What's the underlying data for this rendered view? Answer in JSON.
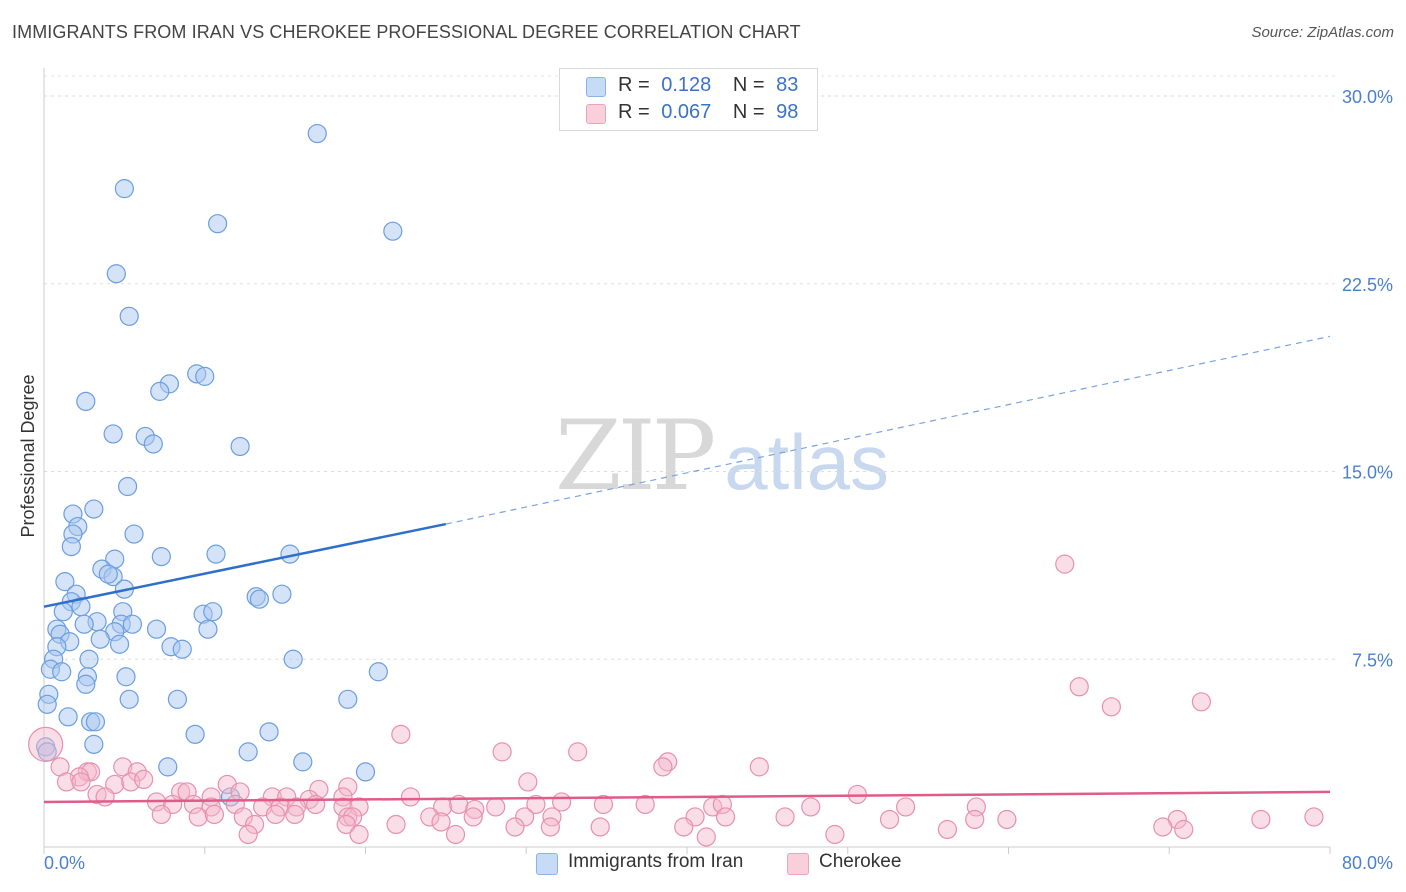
{
  "title": "IMMIGRANTS FROM IRAN VS CHEROKEE PROFESSIONAL DEGREE CORRELATION CHART",
  "source": "Source: ZipAtlas.com",
  "watermark": {
    "zip": "ZIP",
    "atlas": "atlas"
  },
  "legend": {
    "series1": {
      "r_label": "R =",
      "r_value": "0.128",
      "n_label": "N =",
      "n_value": "83",
      "color": "#a9c8f0"
    },
    "series2": {
      "r_label": "R =",
      "r_value": "0.067",
      "n_label": "N =",
      "n_value": "98",
      "color": "#f5b5c9"
    }
  },
  "bottom_legend": {
    "series1": "Immigrants from Iran",
    "series2": "Cherokee"
  },
  "chart_data": {
    "type": "scatter",
    "title": "IMMIGRANTS FROM IRAN VS CHEROKEE PROFESSIONAL DEGREE CORRELATION CHART",
    "xlabel": "",
    "ylabel": "Professional Degree",
    "xlim": [
      0,
      80
    ],
    "ylim": [
      0,
      31
    ],
    "x_tick_labels": [
      "0.0%",
      "80.0%"
    ],
    "y_ticks": [
      7.5,
      15.0,
      22.5,
      30.0
    ],
    "y_tick_labels": [
      "7.5%",
      "15.0%",
      "22.5%",
      "30.0%"
    ],
    "grid": true,
    "series": [
      {
        "name": "Immigrants from Iran",
        "color": "#a9c8f0",
        "stroke": "#6b9ee0",
        "trend": {
          "x0": 0,
          "y0": 9.6,
          "x1": 25,
          "y1": 12.9,
          "dash_to_x": 80,
          "dash_to_y": 20.4,
          "color": "#2f6fcc"
        },
        "points": [
          [
            17.0,
            28.5
          ],
          [
            5.0,
            26.3
          ],
          [
            10.8,
            24.9
          ],
          [
            21.7,
            24.6
          ],
          [
            4.5,
            22.9
          ],
          [
            5.3,
            21.2
          ],
          [
            9.5,
            18.9
          ],
          [
            10.0,
            18.8
          ],
          [
            7.8,
            18.5
          ],
          [
            7.2,
            18.2
          ],
          [
            2.6,
            17.8
          ],
          [
            4.3,
            16.5
          ],
          [
            6.3,
            16.4
          ],
          [
            6.8,
            16.1
          ],
          [
            12.2,
            16.0
          ],
          [
            5.2,
            14.4
          ],
          [
            3.1,
            13.5
          ],
          [
            1.8,
            13.3
          ],
          [
            2.1,
            12.8
          ],
          [
            5.6,
            12.5
          ],
          [
            1.8,
            12.5
          ],
          [
            1.7,
            12.0
          ],
          [
            7.3,
            11.6
          ],
          [
            10.7,
            11.7
          ],
          [
            15.3,
            11.7
          ],
          [
            4.4,
            11.5
          ],
          [
            3.6,
            11.1
          ],
          [
            4.3,
            10.8
          ],
          [
            1.3,
            10.6
          ],
          [
            5.0,
            10.3
          ],
          [
            2.0,
            10.1
          ],
          [
            13.2,
            10.0
          ],
          [
            14.8,
            10.1
          ],
          [
            13.4,
            9.9
          ],
          [
            1.7,
            9.8
          ],
          [
            2.3,
            9.6
          ],
          [
            1.2,
            9.4
          ],
          [
            4.9,
            9.4
          ],
          [
            9.9,
            9.3
          ],
          [
            3.3,
            9.0
          ],
          [
            2.5,
            8.9
          ],
          [
            4.8,
            8.9
          ],
          [
            5.5,
            8.9
          ],
          [
            0.8,
            8.7
          ],
          [
            4.4,
            8.6
          ],
          [
            1.0,
            8.5
          ],
          [
            7.0,
            8.7
          ],
          [
            10.2,
            8.7
          ],
          [
            3.5,
            8.3
          ],
          [
            4.7,
            8.1
          ],
          [
            1.6,
            8.2
          ],
          [
            0.8,
            8.0
          ],
          [
            7.9,
            8.0
          ],
          [
            8.6,
            7.9
          ],
          [
            0.6,
            7.5
          ],
          [
            2.8,
            7.5
          ],
          [
            15.5,
            7.5
          ],
          [
            0.4,
            7.1
          ],
          [
            1.1,
            7.0
          ],
          [
            2.7,
            6.8
          ],
          [
            5.1,
            6.8
          ],
          [
            20.8,
            7.0
          ],
          [
            2.6,
            6.5
          ],
          [
            0.3,
            6.1
          ],
          [
            5.3,
            5.9
          ],
          [
            8.3,
            5.9
          ],
          [
            18.9,
            5.9
          ],
          [
            0.2,
            5.7
          ],
          [
            1.5,
            5.2
          ],
          [
            2.9,
            5.0
          ],
          [
            3.2,
            5.0
          ],
          [
            14.0,
            4.6
          ],
          [
            9.4,
            4.5
          ],
          [
            3.1,
            4.1
          ],
          [
            12.7,
            3.8
          ],
          [
            0.1,
            4.0
          ],
          [
            16.1,
            3.4
          ],
          [
            7.7,
            3.2
          ],
          [
            20.0,
            3.0
          ],
          [
            11.6,
            2.0
          ],
          [
            0.2,
            3.8
          ],
          [
            10.5,
            9.4
          ],
          [
            4.0,
            10.9
          ]
        ]
      },
      {
        "name": "Cherokee",
        "color": "#f5b5c9",
        "stroke": "#e890ad",
        "trend": {
          "x0": 0,
          "y0": 1.8,
          "x1": 80,
          "y1": 2.2,
          "color": "#e05a8a"
        },
        "points": [
          [
            63.5,
            11.3
          ],
          [
            64.4,
            6.4
          ],
          [
            66.4,
            5.6
          ],
          [
            72.0,
            5.8
          ],
          [
            22.2,
            4.5
          ],
          [
            28.5,
            3.8
          ],
          [
            33.2,
            3.8
          ],
          [
            38.8,
            3.4
          ],
          [
            38.5,
            3.2
          ],
          [
            44.5,
            3.2
          ],
          [
            1.0,
            3.2
          ],
          [
            4.9,
            3.2
          ],
          [
            5.8,
            3.0
          ],
          [
            2.7,
            3.0
          ],
          [
            2.9,
            3.0
          ],
          [
            2.2,
            2.8
          ],
          [
            1.4,
            2.6
          ],
          [
            2.3,
            2.6
          ],
          [
            4.4,
            2.5
          ],
          [
            5.4,
            2.6
          ],
          [
            6.2,
            2.7
          ],
          [
            11.4,
            2.5
          ],
          [
            18.9,
            2.4
          ],
          [
            30.1,
            2.6
          ],
          [
            17.1,
            2.3
          ],
          [
            8.5,
            2.2
          ],
          [
            8.9,
            2.2
          ],
          [
            12.2,
            2.2
          ],
          [
            3.3,
            2.1
          ],
          [
            3.8,
            2.0
          ],
          [
            10.4,
            2.0
          ],
          [
            14.2,
            2.0
          ],
          [
            15.1,
            2.0
          ],
          [
            16.5,
            1.9
          ],
          [
            18.6,
            2.0
          ],
          [
            22.8,
            2.0
          ],
          [
            50.6,
            2.1
          ],
          [
            7.0,
            1.8
          ],
          [
            8.0,
            1.7
          ],
          [
            9.3,
            1.7
          ],
          [
            10.4,
            1.6
          ],
          [
            11.9,
            1.7
          ],
          [
            13.6,
            1.6
          ],
          [
            14.7,
            1.6
          ],
          [
            15.7,
            1.6
          ],
          [
            16.9,
            1.7
          ],
          [
            18.6,
            1.6
          ],
          [
            19.6,
            1.6
          ],
          [
            24.8,
            1.6
          ],
          [
            25.8,
            1.7
          ],
          [
            26.8,
            1.5
          ],
          [
            28.1,
            1.6
          ],
          [
            30.6,
            1.7
          ],
          [
            32.2,
            1.8
          ],
          [
            34.8,
            1.7
          ],
          [
            37.4,
            1.7
          ],
          [
            41.6,
            1.6
          ],
          [
            42.2,
            1.7
          ],
          [
            47.7,
            1.6
          ],
          [
            53.6,
            1.6
          ],
          [
            58.0,
            1.6
          ],
          [
            7.3,
            1.3
          ],
          [
            9.6,
            1.2
          ],
          [
            10.6,
            1.3
          ],
          [
            12.4,
            1.2
          ],
          [
            14.4,
            1.3
          ],
          [
            15.6,
            1.3
          ],
          [
            18.9,
            1.2
          ],
          [
            19.2,
            1.2
          ],
          [
            24.0,
            1.2
          ],
          [
            26.7,
            1.2
          ],
          [
            29.9,
            1.2
          ],
          [
            31.6,
            1.2
          ],
          [
            40.5,
            1.2
          ],
          [
            42.4,
            1.2
          ],
          [
            46.1,
            1.2
          ],
          [
            52.6,
            1.1
          ],
          [
            57.9,
            1.1
          ],
          [
            59.9,
            1.1
          ],
          [
            70.5,
            1.1
          ],
          [
            75.7,
            1.1
          ],
          [
            79.0,
            1.2
          ],
          [
            13.1,
            0.9
          ],
          [
            18.8,
            0.9
          ],
          [
            21.9,
            0.9
          ],
          [
            24.7,
            1.0
          ],
          [
            29.3,
            0.8
          ],
          [
            31.5,
            0.8
          ],
          [
            34.6,
            0.8
          ],
          [
            39.8,
            0.8
          ],
          [
            56.2,
            0.7
          ],
          [
            69.6,
            0.8
          ],
          [
            70.9,
            0.7
          ],
          [
            12.7,
            0.5
          ],
          [
            19.6,
            0.5
          ],
          [
            25.6,
            0.5
          ],
          [
            49.2,
            0.5
          ],
          [
            41.2,
            0.4
          ]
        ]
      }
    ]
  }
}
